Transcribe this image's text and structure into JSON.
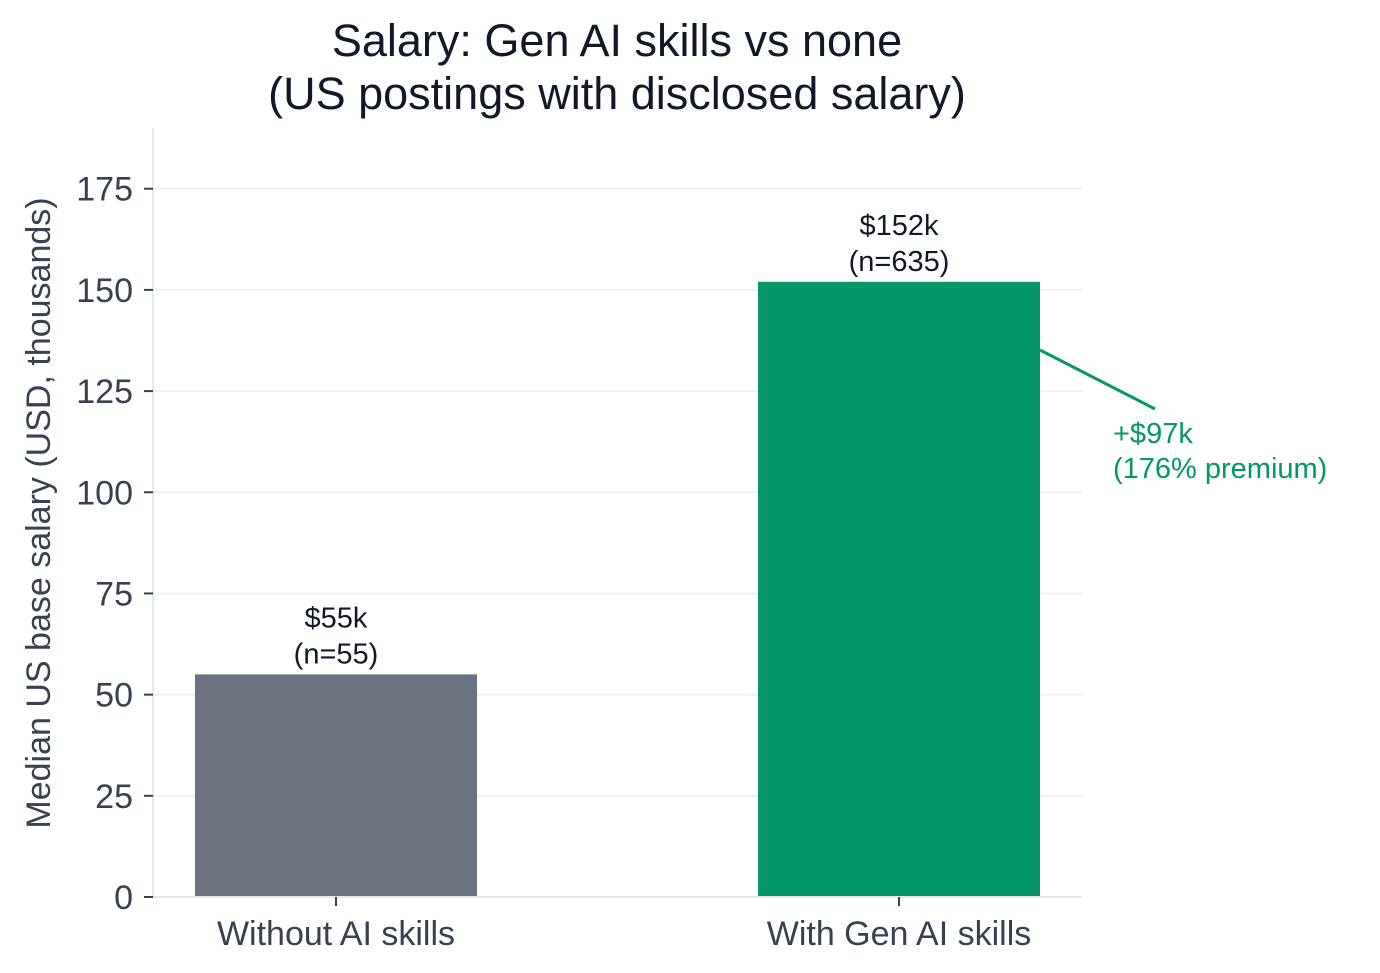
{
  "chart_data": {
    "type": "bar",
    "title": [
      "Salary: Gen AI skills vs none",
      "(US postings with disclosed salary)"
    ],
    "xlabel": "",
    "ylabel": "Median US base salary (USD, thousands)",
    "ylim": [
      0,
      190
    ],
    "yticks": [
      0,
      25,
      50,
      75,
      100,
      125,
      150,
      175
    ],
    "grid": "horizontal",
    "categories": [
      "Without AI skills",
      "With Gen AI skills"
    ],
    "values": [
      55,
      152
    ],
    "data_labels": [
      [
        "$55k",
        "(n=55)"
      ],
      [
        "$152k",
        "(n=635)"
      ]
    ],
    "colors": [
      "#6b7280",
      "#059669"
    ],
    "annotation": {
      "lines": [
        "+$97k",
        "(176% premium)"
      ],
      "color": "#059669"
    }
  }
}
